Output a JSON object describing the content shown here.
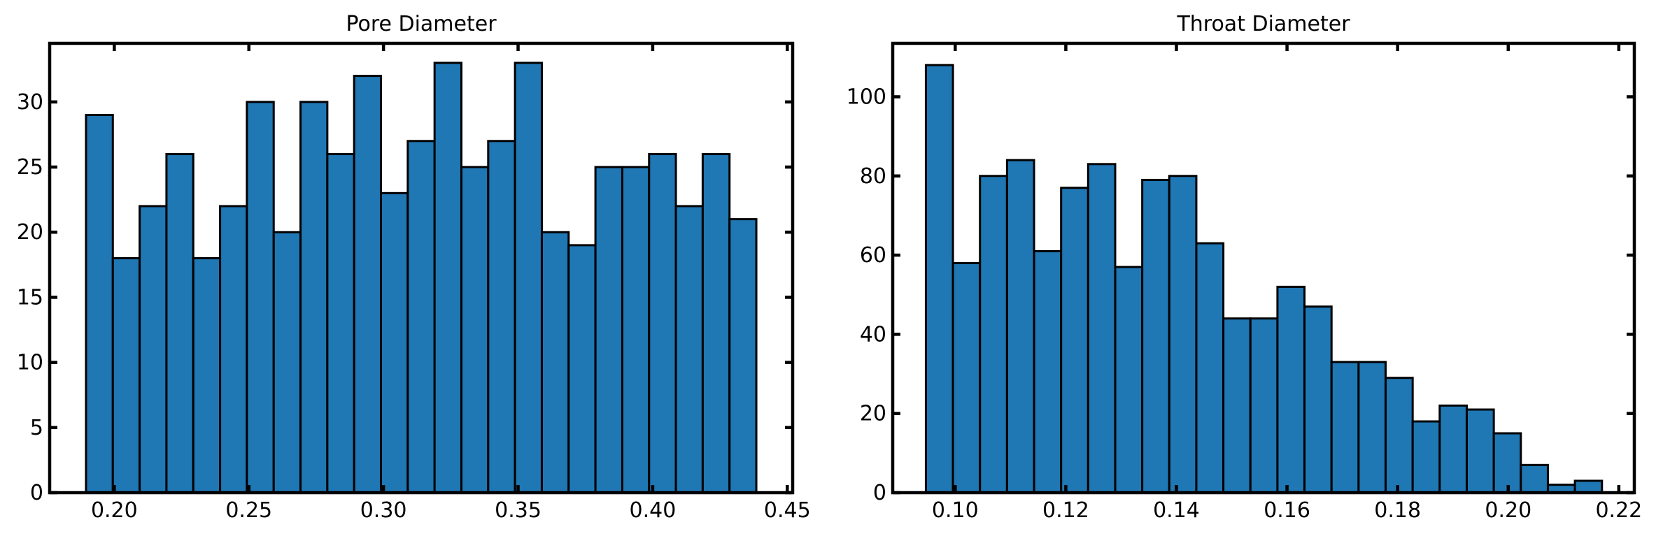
{
  "chart_data": [
    {
      "type": "bar",
      "title": "Pore Diameter",
      "xlabel": "",
      "ylabel": "",
      "xlim": [
        0.176,
        0.452
      ],
      "ylim": [
        0,
        34.5
      ],
      "xticks": [
        0.2,
        0.25,
        0.3,
        0.35,
        0.4,
        0.45
      ],
      "xtick_labels": [
        "0.20",
        "0.25",
        "0.30",
        "0.35",
        "0.40",
        "0.45"
      ],
      "yticks": [
        0,
        5,
        10,
        15,
        20,
        25,
        30
      ],
      "ytick_labels": [
        "0",
        "5",
        "10",
        "15",
        "20",
        "25",
        "30"
      ],
      "bin_start": 0.1895,
      "bin_width": 0.00996,
      "values": [
        29,
        18,
        22,
        26,
        18,
        22,
        30,
        20,
        30,
        26,
        32,
        23,
        27,
        33,
        25,
        27,
        33,
        20,
        19,
        25,
        25,
        26,
        22,
        26,
        21
      ],
      "bar_color": "#1f77b4",
      "edge_color": "#000000",
      "grid": false
    },
    {
      "type": "bar",
      "title": "Throat Diameter",
      "xlabel": "",
      "ylabel": "",
      "xlim": [
        0.0887,
        0.2228
      ],
      "ylim": [
        0,
        113.5
      ],
      "xticks": [
        0.1,
        0.12,
        0.14,
        0.16,
        0.18,
        0.2,
        0.22
      ],
      "xtick_labels": [
        "0.10",
        "0.12",
        "0.14",
        "0.16",
        "0.18",
        "0.20",
        "0.22"
      ],
      "yticks": [
        0,
        20,
        40,
        60,
        80,
        100
      ],
      "ytick_labels": [
        "0",
        "20",
        "40",
        "60",
        "80",
        "100"
      ],
      "bin_start": 0.0947,
      "bin_width": 0.00489,
      "values": [
        108,
        58,
        80,
        84,
        61,
        77,
        83,
        57,
        79,
        80,
        63,
        44,
        44,
        52,
        47,
        33,
        33,
        29,
        18,
        22,
        21,
        15,
        7,
        2,
        3
      ],
      "bar_color": "#1f77b4",
      "edge_color": "#000000",
      "grid": false
    }
  ]
}
